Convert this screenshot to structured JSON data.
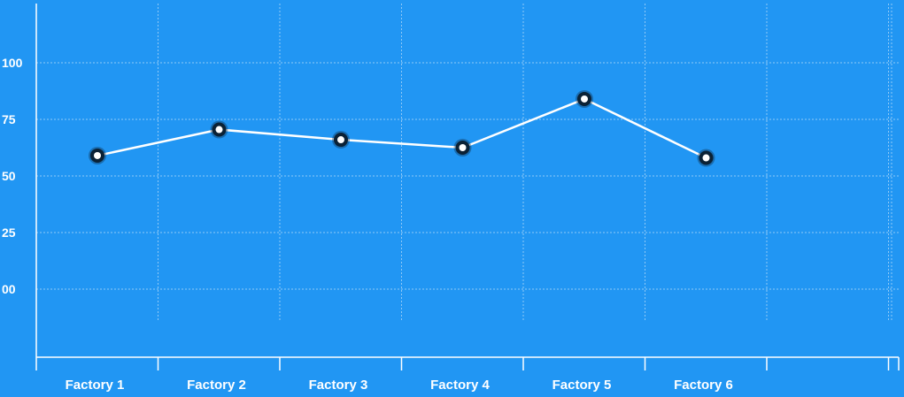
{
  "chart_data": {
    "type": "line",
    "categories": [
      "Factory 1",
      "Factory 2",
      "Factory 3",
      "Factory 4",
      "Factory 5",
      "Factory 6"
    ],
    "series": [
      {
        "values": [
          59,
          70.5,
          66,
          62.5,
          84,
          58
        ]
      }
    ],
    "y_ticks": [
      {
        "value": 0,
        "label": "00"
      },
      {
        "value": 25,
        "label": "25"
      },
      {
        "value": 50,
        "label": "50"
      },
      {
        "value": 75,
        "label": "75"
      },
      {
        "value": 100,
        "label": "100"
      }
    ],
    "ylim": [
      -30,
      125
    ],
    "grid": true,
    "colors": {
      "background": "#2196f3",
      "line": "#ffffff",
      "marker_ring": "#0b2236",
      "grid": "#8fc9f7"
    }
  }
}
